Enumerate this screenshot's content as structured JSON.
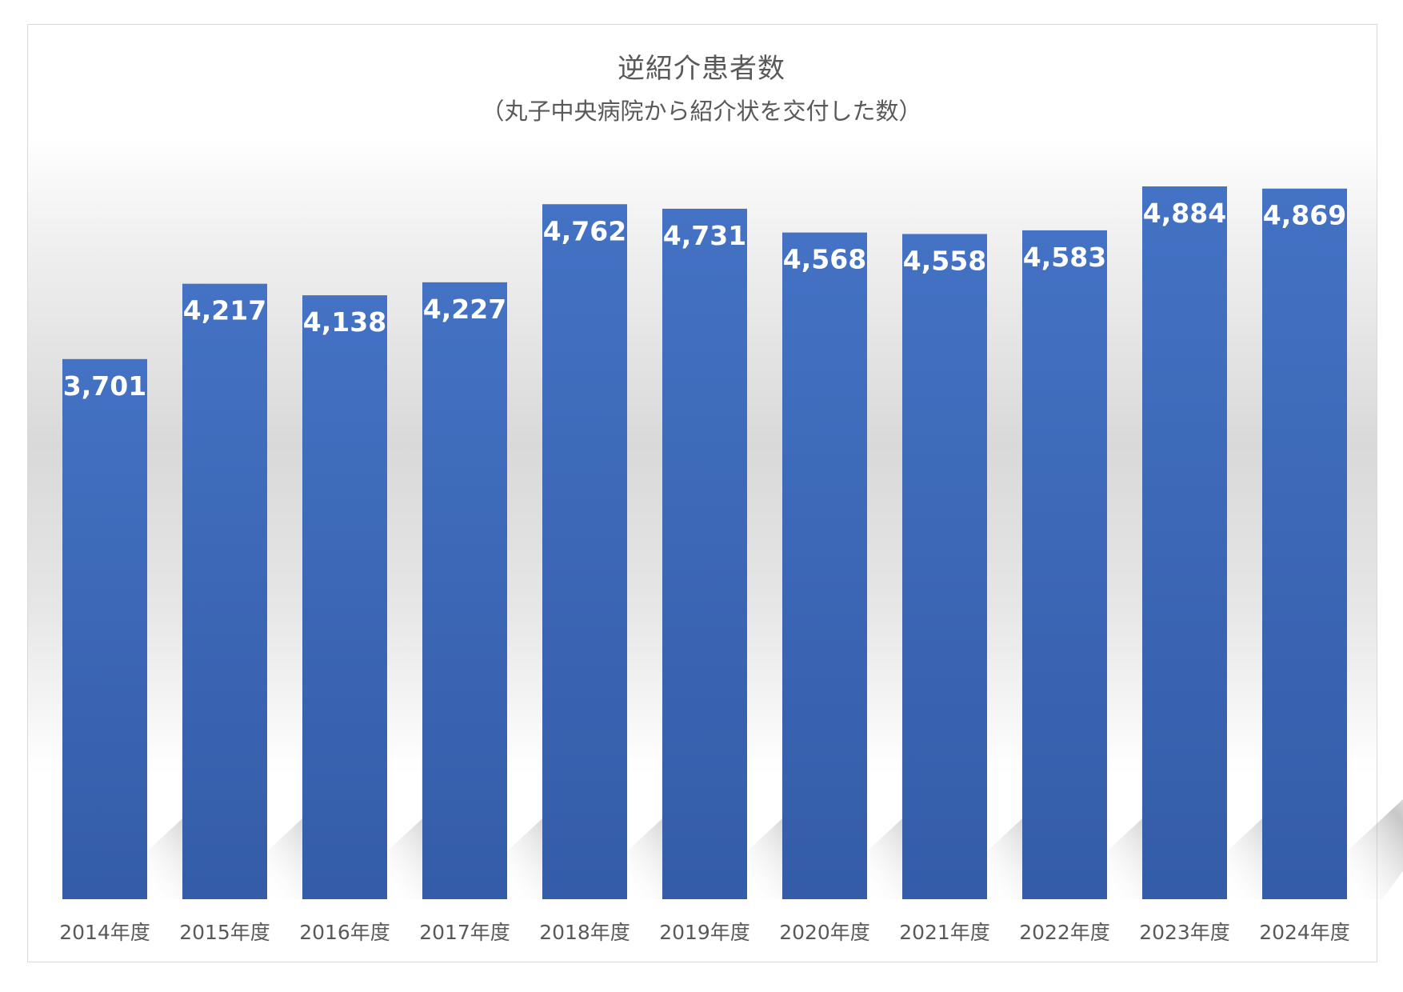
{
  "chart_data": {
    "type": "bar",
    "title": "逆紹介患者数",
    "subtitle": "（丸子中央病院から紹介状を交付した数）",
    "categories": [
      "2014年度",
      "2015年度",
      "2016年度",
      "2017年度",
      "2018年度",
      "2019年度",
      "2020年度",
      "2021年度",
      "2022年度",
      "2023年度",
      "2024年度"
    ],
    "values": [
      3701,
      4217,
      4138,
      4227,
      4762,
      4731,
      4568,
      4558,
      4583,
      4884,
      4869
    ],
    "value_labels": [
      "3,701",
      "4,217",
      "4,138",
      "4,227",
      "4,762",
      "4,731",
      "4,568",
      "4,558",
      "4,583",
      "4,884",
      "4,869"
    ],
    "ylim": [
      0,
      5000
    ],
    "grid": false,
    "legend": "none",
    "bar_color_top": "#4472c4",
    "bar_color_bottom": "#345ca8"
  }
}
